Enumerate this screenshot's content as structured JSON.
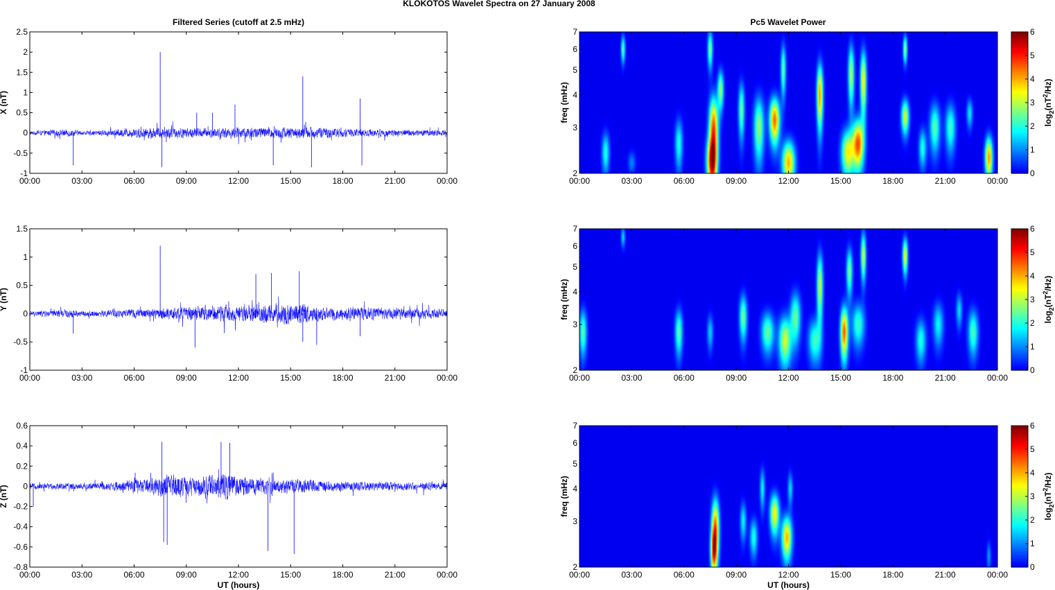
{
  "figure": {
    "title": "KLOKOTOS Wavelet Spectra on 27 January   2008",
    "left_title": "Filtered Series (cutoff at 2.5 mHz)",
    "right_title": "Pc5 Wavelet Power"
  },
  "chart_data": [
    {
      "type": "line",
      "component": "X",
      "ylabel": "X (nT)",
      "xlabel": "",
      "x_ticks": [
        "00:00",
        "03:00",
        "06:00",
        "09:00",
        "12:00",
        "15:00",
        "18:00",
        "21:00",
        "00:00"
      ],
      "xlim_hours": [
        0,
        24
      ],
      "ylim": [
        -1,
        2.5
      ],
      "y_ticks": [
        "-1",
        "-0.5",
        "0",
        "0.5",
        "1",
        "1.5",
        "2",
        "2.5"
      ],
      "color": "#0000ff",
      "noise": [
        [
          0,
          0.05
        ],
        [
          2.4,
          0.1
        ],
        [
          3.0,
          0.05
        ],
        [
          7.5,
          0.15
        ],
        [
          10.5,
          0.12
        ],
        [
          12,
          0.15
        ],
        [
          15,
          0.15
        ],
        [
          16,
          0.15
        ],
        [
          19,
          0.1
        ],
        [
          24,
          0.08
        ]
      ],
      "spikes": [
        [
          2.5,
          -0.8
        ],
        [
          7.5,
          2.0
        ],
        [
          7.6,
          -0.85
        ],
        [
          9.6,
          0.5
        ],
        [
          10.5,
          0.5
        ],
        [
          11.8,
          0.7
        ],
        [
          14,
          -0.8
        ],
        [
          15.7,
          1.4
        ],
        [
          16.2,
          -0.85
        ],
        [
          19.0,
          0.85
        ],
        [
          19.1,
          -0.8
        ],
        [
          24,
          -0.75
        ]
      ]
    },
    {
      "type": "line",
      "component": "Y",
      "ylabel": "Y (nT)",
      "xlabel": "",
      "x_ticks": [
        "00:00",
        "03:00",
        "06:00",
        "09:00",
        "12:00",
        "15:00",
        "18:00",
        "21:00",
        "00:00"
      ],
      "xlim_hours": [
        0,
        24
      ],
      "ylim": [
        -1,
        1.5
      ],
      "y_ticks": [
        "-1",
        "-0.5",
        "0",
        "0.5",
        "1",
        "1.5"
      ],
      "color": "#0000ff",
      "noise": [
        [
          0,
          0.05
        ],
        [
          2.4,
          0.08
        ],
        [
          3.0,
          0.05
        ],
        [
          7.5,
          0.1
        ],
        [
          10.5,
          0.15
        ],
        [
          12,
          0.15
        ],
        [
          14,
          0.18
        ],
        [
          15.5,
          0.2
        ],
        [
          17,
          0.12
        ],
        [
          19,
          0.12
        ],
        [
          24,
          0.08
        ]
      ],
      "spikes": [
        [
          2.5,
          -0.35
        ],
        [
          7.5,
          1.2
        ],
        [
          9.5,
          -0.6
        ],
        [
          13,
          0.7
        ],
        [
          13.9,
          0.72
        ],
        [
          15.5,
          0.75
        ],
        [
          15.7,
          -0.5
        ],
        [
          16.5,
          -0.55
        ],
        [
          19,
          -0.4
        ],
        [
          24,
          -0.2
        ]
      ]
    },
    {
      "type": "line",
      "component": "Z",
      "ylabel": "Z (nT)",
      "xlabel": "UT (hours)",
      "x_ticks": [
        "00:00",
        "03:00",
        "06:00",
        "09:00",
        "12:00",
        "15:00",
        "18:00",
        "21:00",
        "00:00"
      ],
      "xlim_hours": [
        0,
        24
      ],
      "ylim": [
        -0.8,
        0.6
      ],
      "y_ticks": [
        "-0.8",
        "-0.6",
        "-0.4",
        "-0.2",
        "0",
        "0.2",
        "0.4",
        "0.6"
      ],
      "color": "#0000ff",
      "noise": [
        [
          0,
          0.03
        ],
        [
          4.5,
          0.04
        ],
        [
          6.8,
          0.08
        ],
        [
          7.8,
          0.12
        ],
        [
          9.5,
          0.1
        ],
        [
          11,
          0.14
        ],
        [
          12.5,
          0.1
        ],
        [
          15,
          0.07
        ],
        [
          18,
          0.05
        ],
        [
          24,
          0.04
        ]
      ],
      "spikes": [
        [
          0.2,
          -0.2
        ],
        [
          7.6,
          0.44
        ],
        [
          7.7,
          -0.55
        ],
        [
          7.9,
          -0.58
        ],
        [
          11.0,
          0.44
        ],
        [
          11.5,
          0.43
        ],
        [
          13.7,
          -0.64
        ],
        [
          15.2,
          -0.67
        ],
        [
          24,
          -0.3
        ]
      ]
    },
    {
      "type": "heatmap",
      "component": "X",
      "ylabel": "freq (mHz)",
      "xlabel": "",
      "x_ticks": [
        "00:00",
        "03:00",
        "06:00",
        "09:00",
        "12:00",
        "15:00",
        "18:00",
        "21:00",
        "00:00"
      ],
      "xlim_hours": [
        0,
        24
      ],
      "ylim_mhz": [
        2,
        7
      ],
      "y_scale": "log",
      "y_ticks": [
        "2",
        "3",
        "4",
        "5",
        "6",
        "7"
      ],
      "colorbar": {
        "label": "log2(nT2/Hz)",
        "range": [
          0,
          6
        ],
        "ticks": [
          "0",
          "1",
          "2",
          "3",
          "4",
          "5",
          "6"
        ]
      },
      "colormap": "jet",
      "blobs": [
        [
          1.5,
          2.4,
          0.15,
          0.3,
          2.0
        ],
        [
          2.5,
          6.0,
          0.08,
          0.5,
          2.5
        ],
        [
          3.0,
          2.2,
          0.15,
          0.15,
          1.0
        ],
        [
          5.7,
          2.6,
          0.15,
          0.4,
          2.0
        ],
        [
          7.6,
          2.2,
          0.2,
          0.35,
          4.8
        ],
        [
          7.7,
          3.0,
          0.18,
          0.6,
          4.6
        ],
        [
          7.5,
          6.0,
          0.1,
          0.7,
          2.6
        ],
        [
          8.1,
          4.2,
          0.12,
          0.5,
          2.8
        ],
        [
          9.3,
          3.5,
          0.12,
          0.6,
          2.5
        ],
        [
          10.3,
          3.0,
          0.2,
          0.6,
          2.8
        ],
        [
          11.2,
          3.2,
          0.2,
          0.45,
          4.5
        ],
        [
          11.7,
          5.0,
          0.1,
          0.8,
          2.5
        ],
        [
          12.0,
          2.2,
          0.25,
          0.3,
          4.0
        ],
        [
          13.8,
          4.0,
          0.12,
          0.8,
          4.2
        ],
        [
          15.4,
          2.4,
          0.25,
          0.35,
          3.5
        ],
        [
          16.0,
          2.6,
          0.22,
          0.4,
          4.6
        ],
        [
          15.6,
          4.8,
          0.12,
          0.9,
          3.0
        ],
        [
          16.3,
          4.5,
          0.12,
          0.9,
          3.6
        ],
        [
          18.7,
          3.3,
          0.15,
          0.35,
          3.3
        ],
        [
          18.7,
          6.0,
          0.08,
          0.5,
          3.0
        ],
        [
          19.7,
          2.5,
          0.15,
          0.3,
          2.0
        ],
        [
          20.4,
          3.0,
          0.2,
          0.45,
          2.4
        ],
        [
          21.3,
          3.0,
          0.2,
          0.45,
          2.2
        ],
        [
          22.4,
          3.4,
          0.12,
          0.3,
          1.7
        ],
        [
          23.5,
          2.3,
          0.15,
          0.3,
          4.2
        ]
      ]
    },
    {
      "type": "heatmap",
      "component": "Y",
      "ylabel": "freq (mHz)",
      "xlabel": "",
      "x_ticks": [
        "00:00",
        "03:00",
        "06:00",
        "09:00",
        "12:00",
        "15:00",
        "18:00",
        "21:00",
        "00:00"
      ],
      "xlim_hours": [
        0,
        24
      ],
      "ylim_mhz": [
        2,
        7
      ],
      "y_scale": "log",
      "y_ticks": [
        "2",
        "3",
        "4",
        "5",
        "6",
        "7"
      ],
      "colorbar": {
        "label": "log2(nT2/Hz)",
        "range": [
          0,
          6
        ],
        "ticks": [
          "0",
          "1",
          "2",
          "3",
          "4",
          "5",
          "6"
        ]
      },
      "colormap": "jet",
      "blobs": [
        [
          0.2,
          2.8,
          0.15,
          0.4,
          2.4
        ],
        [
          2.5,
          6.5,
          0.08,
          0.4,
          1.6
        ],
        [
          5.7,
          2.8,
          0.15,
          0.4,
          2.4
        ],
        [
          7.5,
          2.8,
          0.12,
          0.3,
          1.5
        ],
        [
          9.4,
          3.2,
          0.15,
          0.45,
          2.6
        ],
        [
          10.8,
          2.8,
          0.25,
          0.35,
          2.5
        ],
        [
          11.8,
          2.6,
          0.25,
          0.4,
          3.2
        ],
        [
          12.4,
          3.2,
          0.2,
          0.5,
          2.5
        ],
        [
          13.8,
          4.2,
          0.12,
          0.9,
          3.2
        ],
        [
          13.5,
          2.6,
          0.25,
          0.35,
          2.2
        ],
        [
          15.2,
          2.8,
          0.15,
          0.45,
          4.6
        ],
        [
          15.5,
          4.8,
          0.12,
          0.7,
          2.6
        ],
        [
          16.3,
          5.5,
          0.1,
          0.8,
          3.2
        ],
        [
          16.0,
          3.0,
          0.25,
          0.4,
          2.2
        ],
        [
          18.7,
          5.5,
          0.1,
          0.6,
          3.6
        ],
        [
          19.6,
          2.6,
          0.2,
          0.35,
          2.0
        ],
        [
          20.6,
          3.0,
          0.2,
          0.4,
          1.8
        ],
        [
          21.8,
          3.4,
          0.12,
          0.35,
          1.6
        ],
        [
          22.6,
          2.8,
          0.2,
          0.4,
          2.3
        ]
      ]
    },
    {
      "type": "heatmap",
      "component": "Z",
      "ylabel": "freq (mHz)",
      "xlabel": "UT (hours)",
      "x_ticks": [
        "00:00",
        "03:00",
        "06:00",
        "09:00",
        "12:00",
        "15:00",
        "18:00",
        "21:00",
        "00:00"
      ],
      "xlim_hours": [
        0,
        24
      ],
      "ylim_mhz": [
        2,
        7
      ],
      "y_scale": "log",
      "y_ticks": [
        "2",
        "3",
        "4",
        "5",
        "6",
        "7"
      ],
      "colorbar": {
        "label": "log2(nT2/Hz)",
        "range": [
          0,
          6
        ],
        "ticks": [
          "0",
          "1",
          "2",
          "3",
          "4",
          "5",
          "6"
        ]
      },
      "colormap": "jet",
      "blobs": [
        [
          7.8,
          2.8,
          0.15,
          0.55,
          4.6
        ],
        [
          7.7,
          2.3,
          0.12,
          0.3,
          3.5
        ],
        [
          9.4,
          3.0,
          0.12,
          0.35,
          1.8
        ],
        [
          10.0,
          2.6,
          0.15,
          0.3,
          2.0
        ],
        [
          10.5,
          4.0,
          0.1,
          0.5,
          1.8
        ],
        [
          11.2,
          3.2,
          0.18,
          0.4,
          3.6
        ],
        [
          11.9,
          2.6,
          0.2,
          0.35,
          4.0
        ],
        [
          12.1,
          4.0,
          0.1,
          0.4,
          1.6
        ],
        [
          23.5,
          2.2,
          0.08,
          0.2,
          1.2
        ]
      ]
    }
  ]
}
